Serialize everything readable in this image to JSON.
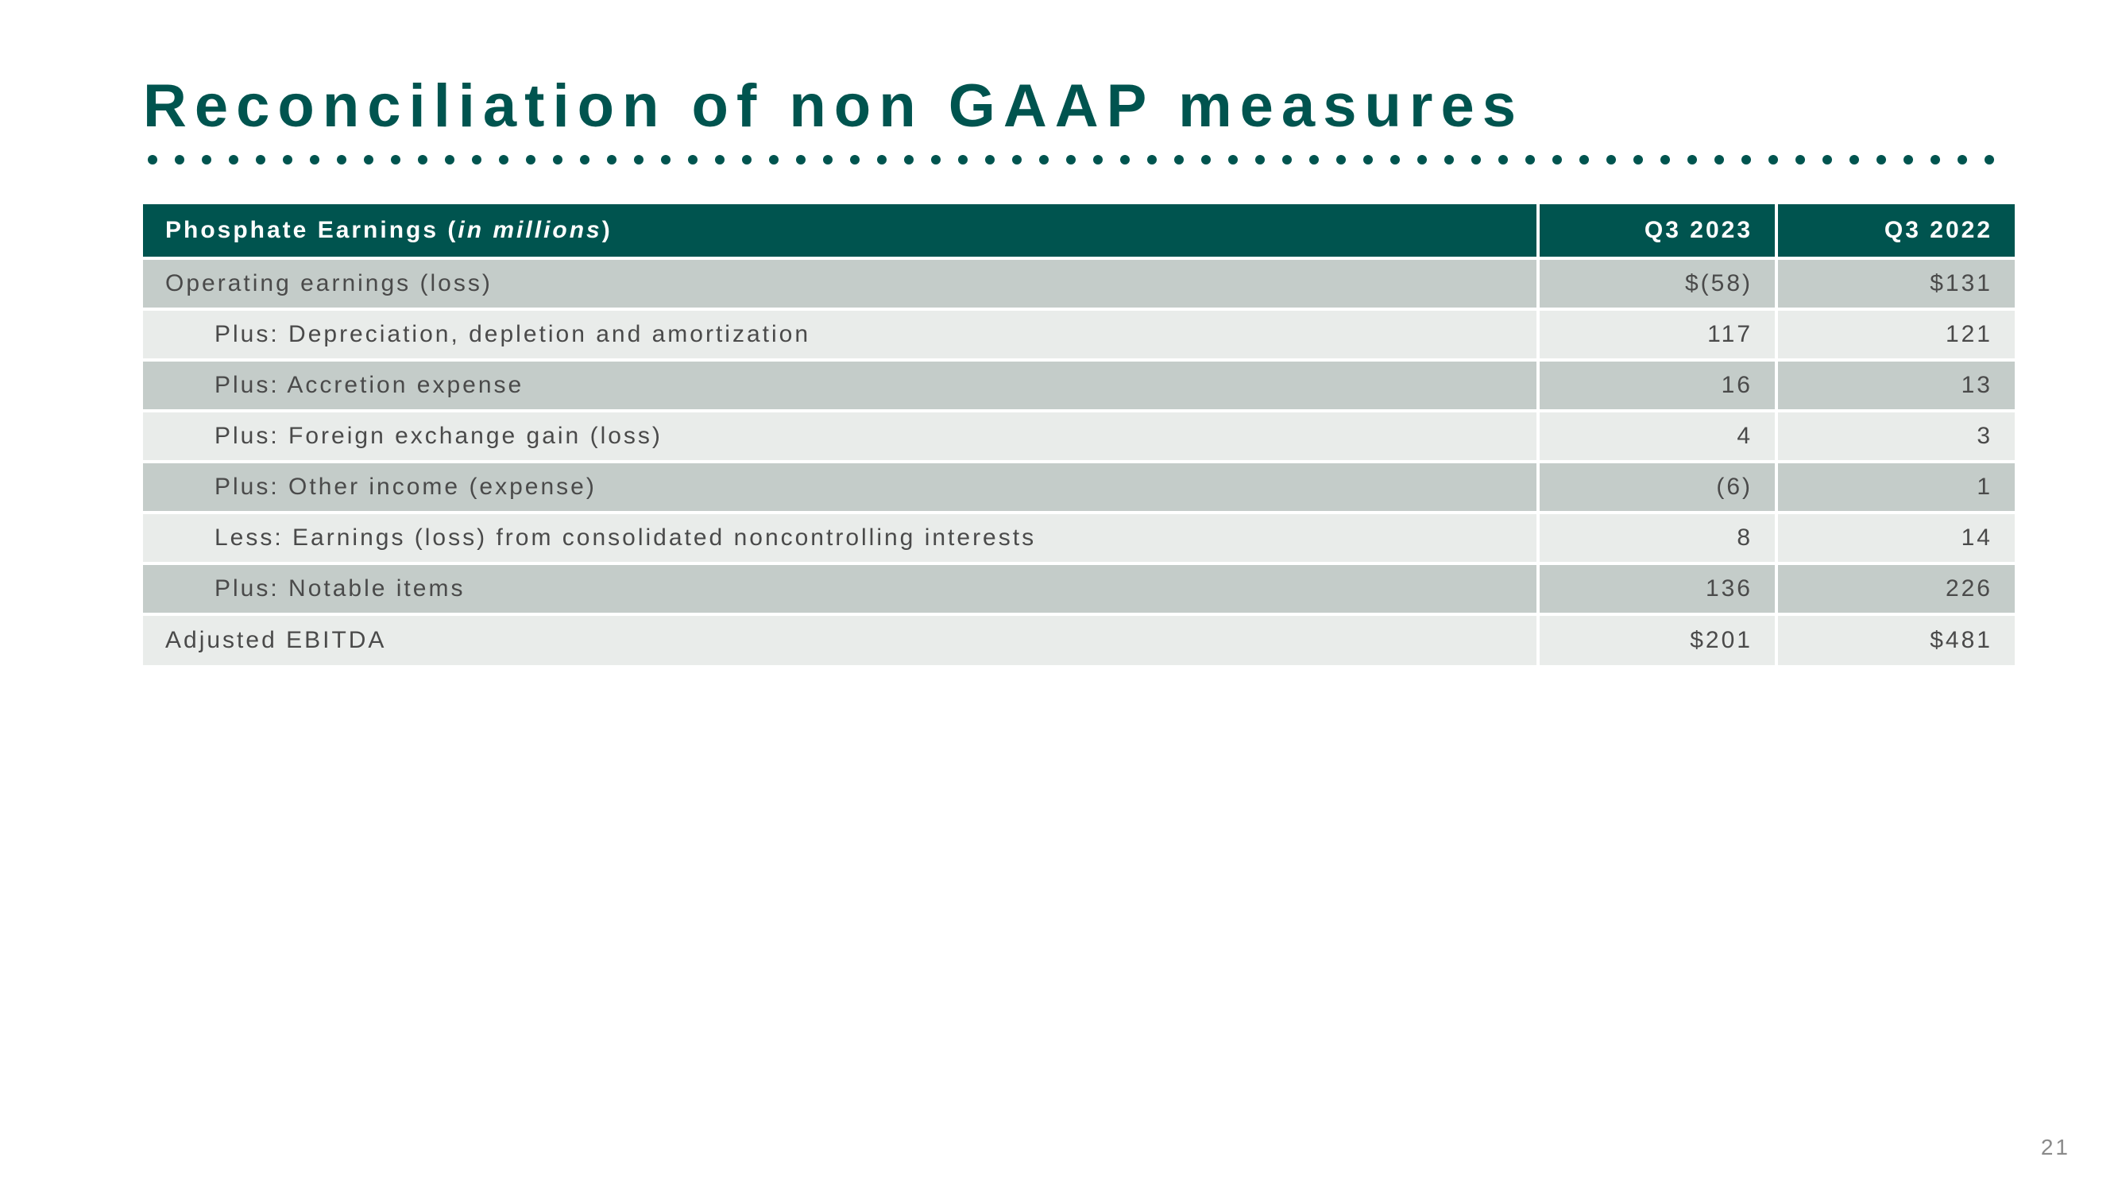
{
  "title": "Reconciliation of non GAAP measures",
  "page_number": "21",
  "colors": {
    "brand": "#00544f",
    "row_dark": "#c4ccc9",
    "row_light": "#e9ecea",
    "text": "#4a4a4a",
    "background": "#ffffff"
  },
  "divider": {
    "dot_count": 69
  },
  "table": {
    "header": {
      "label_prefix": "Phosphate Earnings (",
      "label_italic": "in millions",
      "label_suffix": ")",
      "col1": "Q3 2023",
      "col2": "Q3 2022"
    },
    "rows": [
      {
        "label": "Operating earnings (loss)",
        "v1": "$(58)",
        "v2": "$131",
        "indent": false,
        "shade": "dark"
      },
      {
        "label": "Plus: Depreciation, depletion and amortization",
        "v1": "117",
        "v2": "121",
        "indent": true,
        "shade": "light"
      },
      {
        "label": "Plus: Accretion expense",
        "v1": "16",
        "v2": "13",
        "indent": true,
        "shade": "dark"
      },
      {
        "label": "Plus: Foreign exchange gain (loss)",
        "v1": "4",
        "v2": "3",
        "indent": true,
        "shade": "light"
      },
      {
        "label": "Plus:  Other income (expense)",
        "v1": "(6)",
        "v2": "1",
        "indent": true,
        "shade": "dark"
      },
      {
        "label": "Less: Earnings (loss) from consolidated noncontrolling interests",
        "v1": "8",
        "v2": "14",
        "indent": true,
        "shade": "light"
      },
      {
        "label": "Plus: Notable items",
        "v1": "136",
        "v2": "226",
        "indent": true,
        "shade": "dark",
        "subtotal_border": true
      },
      {
        "label": "Adjusted EBITDA",
        "v1": "$201",
        "v2": "$481",
        "indent": false,
        "shade": "light"
      }
    ]
  }
}
